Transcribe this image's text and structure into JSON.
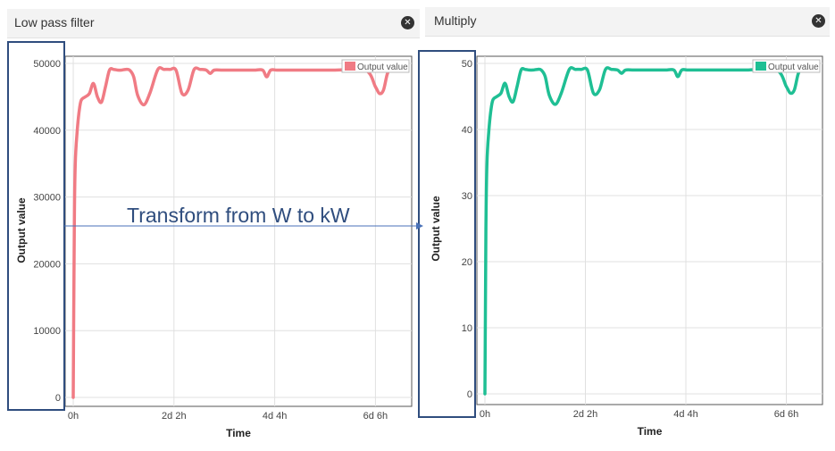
{
  "panels": [
    {
      "title": "Low pass filter"
    },
    {
      "title": "Multiply"
    }
  ],
  "annotation": "Transform from W to kW",
  "chart_data": [
    {
      "type": "line",
      "xlabel": "Time",
      "ylabel": "Output value",
      "x_tick_labels": [
        "0h",
        "2d 2h",
        "4d 4h",
        "6d 6h"
      ],
      "x_tick_values_hours": [
        0,
        50,
        100,
        150
      ],
      "y_ticks": [
        0,
        10000,
        20000,
        30000,
        40000,
        50000
      ],
      "ylim": [
        0,
        50000
      ],
      "xlim_hours": [
        -4,
        168
      ],
      "legend": "top-right",
      "grid": true,
      "series": [
        {
          "name": "Output value",
          "color": "#f07b84",
          "x_hours": [
            0,
            0.5,
            1,
            2,
            3,
            4,
            6,
            8,
            10,
            12,
            14,
            16,
            18,
            20,
            22,
            24,
            26,
            28,
            30,
            32,
            35,
            38,
            42,
            45,
            48,
            51,
            54,
            57,
            60,
            63,
            66,
            68,
            70,
            74,
            80,
            86,
            90,
            94,
            96,
            98,
            101,
            105,
            110,
            130,
            145,
            150,
            152,
            154,
            156,
            158,
            162
          ],
          "values": [
            0,
            25000,
            35000,
            40000,
            43000,
            44500,
            45000,
            45500,
            47000,
            45000,
            44200,
            46500,
            49000,
            49100,
            49000,
            49000,
            49100,
            49000,
            48000,
            45200,
            43800,
            45500,
            49100,
            49100,
            49100,
            49000,
            45500,
            46000,
            49100,
            49100,
            49000,
            48500,
            49000,
            49000,
            49000,
            49000,
            49000,
            49000,
            48000,
            49000,
            49000,
            49000,
            49000,
            49000,
            49000,
            46500,
            45500,
            46000,
            48500,
            49000,
            49000
          ]
        }
      ]
    },
    {
      "type": "line",
      "xlabel": "Time",
      "ylabel": "Output value",
      "x_tick_labels": [
        "0h",
        "2d 2h",
        "4d 4h",
        "6d 6h"
      ],
      "x_tick_values_hours": [
        0,
        50,
        100,
        150
      ],
      "y_ticks": [
        0,
        10,
        20,
        30,
        40,
        50
      ],
      "ylim": [
        0,
        50
      ],
      "xlim_hours": [
        -4,
        168
      ],
      "legend": "top-right",
      "grid": true,
      "series": [
        {
          "name": "Output value",
          "color": "#1fbf94",
          "x_hours": [
            0,
            0.5,
            1,
            2,
            3,
            4,
            6,
            8,
            10,
            12,
            14,
            16,
            18,
            20,
            22,
            24,
            26,
            28,
            30,
            32,
            35,
            38,
            42,
            45,
            48,
            51,
            54,
            57,
            60,
            63,
            66,
            68,
            70,
            74,
            80,
            86,
            90,
            94,
            96,
            98,
            101,
            105,
            110,
            130,
            145,
            150,
            152,
            154,
            156,
            158,
            162
          ],
          "values": [
            0,
            25,
            35,
            40,
            43,
            44.5,
            45,
            45.5,
            47,
            45,
            44.2,
            46.5,
            49,
            49.1,
            49,
            49,
            49.1,
            49,
            48,
            45.2,
            43.8,
            45.5,
            49.1,
            49.1,
            49.1,
            49,
            45.5,
            46,
            49.1,
            49.1,
            49,
            48.5,
            49,
            49,
            49,
            49,
            49,
            49,
            48,
            49,
            49,
            49,
            49,
            49,
            49,
            46.5,
            45.5,
            46,
            48.5,
            49,
            49
          ]
        }
      ]
    }
  ]
}
